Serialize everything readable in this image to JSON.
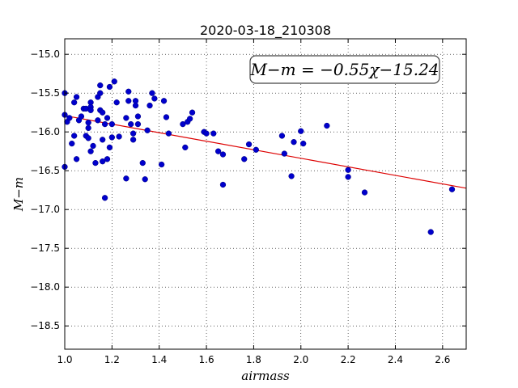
{
  "chart_data": {
    "type": "scatter",
    "title": "2020-03-18_210308",
    "xlabel": "airmass",
    "ylabel": "M−m",
    "xlim": [
      1.0,
      2.7
    ],
    "ylim": [
      -18.8,
      -14.8
    ],
    "y_inverted": true,
    "x_ticks": [
      "1.0",
      "1.2",
      "1.4",
      "1.6",
      "1.8",
      "2.0",
      "2.2",
      "2.4",
      "2.6"
    ],
    "y_ticks": [
      "−15.0",
      "−15.5",
      "−16.0",
      "−16.5",
      "−17.0",
      "−17.5",
      "−18.0",
      "−18.5"
    ],
    "grid": true,
    "annotation": "M−m = −0.55χ−15.24",
    "colors": {
      "points": "#0000cc",
      "fit": "#dd0000"
    },
    "fit_line": {
      "slope": -0.55,
      "intercept": -15.24
    },
    "points": [
      [
        1.0,
        -15.5
      ],
      [
        1.0,
        -15.78
      ],
      [
        1.0,
        -16.45
      ],
      [
        1.01,
        -15.87
      ],
      [
        1.02,
        -15.82
      ],
      [
        1.03,
        -16.15
      ],
      [
        1.04,
        -15.62
      ],
      [
        1.04,
        -16.05
      ],
      [
        1.05,
        -15.55
      ],
      [
        1.05,
        -16.35
      ],
      [
        1.06,
        -15.85
      ],
      [
        1.07,
        -15.8
      ],
      [
        1.08,
        -15.7
      ],
      [
        1.09,
        -16.05
      ],
      [
        1.09,
        -15.7
      ],
      [
        1.1,
        -15.95
      ],
      [
        1.1,
        -15.88
      ],
      [
        1.1,
        -16.08
      ],
      [
        1.11,
        -15.62
      ],
      [
        1.11,
        -15.68
      ],
      [
        1.11,
        -15.72
      ],
      [
        1.11,
        -16.25
      ],
      [
        1.12,
        -16.18
      ],
      [
        1.13,
        -16.4
      ],
      [
        1.14,
        -15.55
      ],
      [
        1.14,
        -15.85
      ],
      [
        1.15,
        -15.4
      ],
      [
        1.15,
        -15.5
      ],
      [
        1.15,
        -15.72
      ],
      [
        1.16,
        -15.75
      ],
      [
        1.16,
        -16.38
      ],
      [
        1.16,
        -16.1
      ],
      [
        1.17,
        -16.85
      ],
      [
        1.17,
        -15.9
      ],
      [
        1.18,
        -15.82
      ],
      [
        1.18,
        -16.35
      ],
      [
        1.19,
        -15.42
      ],
      [
        1.19,
        -16.2
      ],
      [
        1.2,
        -15.9
      ],
      [
        1.2,
        -16.07
      ],
      [
        1.21,
        -15.35
      ],
      [
        1.22,
        -15.62
      ],
      [
        1.23,
        -16.06
      ],
      [
        1.26,
        -16.6
      ],
      [
        1.26,
        -15.82
      ],
      [
        1.27,
        -15.48
      ],
      [
        1.27,
        -15.6
      ],
      [
        1.28,
        -15.9
      ],
      [
        1.29,
        -16.02
      ],
      [
        1.29,
        -16.1
      ],
      [
        1.3,
        -15.6
      ],
      [
        1.3,
        -15.66
      ],
      [
        1.31,
        -15.8
      ],
      [
        1.31,
        -15.9
      ],
      [
        1.33,
        -16.4
      ],
      [
        1.34,
        -16.61
      ],
      [
        1.35,
        -15.98
      ],
      [
        1.36,
        -15.66
      ],
      [
        1.37,
        -15.5
      ],
      [
        1.38,
        -15.57
      ],
      [
        1.41,
        -16.42
      ],
      [
        1.42,
        -15.6
      ],
      [
        1.43,
        -15.81
      ],
      [
        1.44,
        -16.02
      ],
      [
        1.5,
        -15.9
      ],
      [
        1.51,
        -16.2
      ],
      [
        1.52,
        -15.87
      ],
      [
        1.53,
        -15.83
      ],
      [
        1.54,
        -15.75
      ],
      [
        1.59,
        -16.0
      ],
      [
        1.6,
        -16.02
      ],
      [
        1.63,
        -16.02
      ],
      [
        1.65,
        -16.25
      ],
      [
        1.67,
        -16.29
      ],
      [
        1.67,
        -16.68
      ],
      [
        1.76,
        -16.35
      ],
      [
        1.78,
        -16.16
      ],
      [
        1.81,
        -16.23
      ],
      [
        1.92,
        -16.05
      ],
      [
        1.93,
        -16.28
      ],
      [
        1.96,
        -16.57
      ],
      [
        1.97,
        -16.13
      ],
      [
        2.0,
        -15.99
      ],
      [
        2.01,
        -16.15
      ],
      [
        2.11,
        -15.92
      ],
      [
        2.2,
        -16.49
      ],
      [
        2.2,
        -16.58
      ],
      [
        2.27,
        -16.78
      ],
      [
        2.55,
        -17.29
      ],
      [
        2.64,
        -16.74
      ]
    ]
  }
}
